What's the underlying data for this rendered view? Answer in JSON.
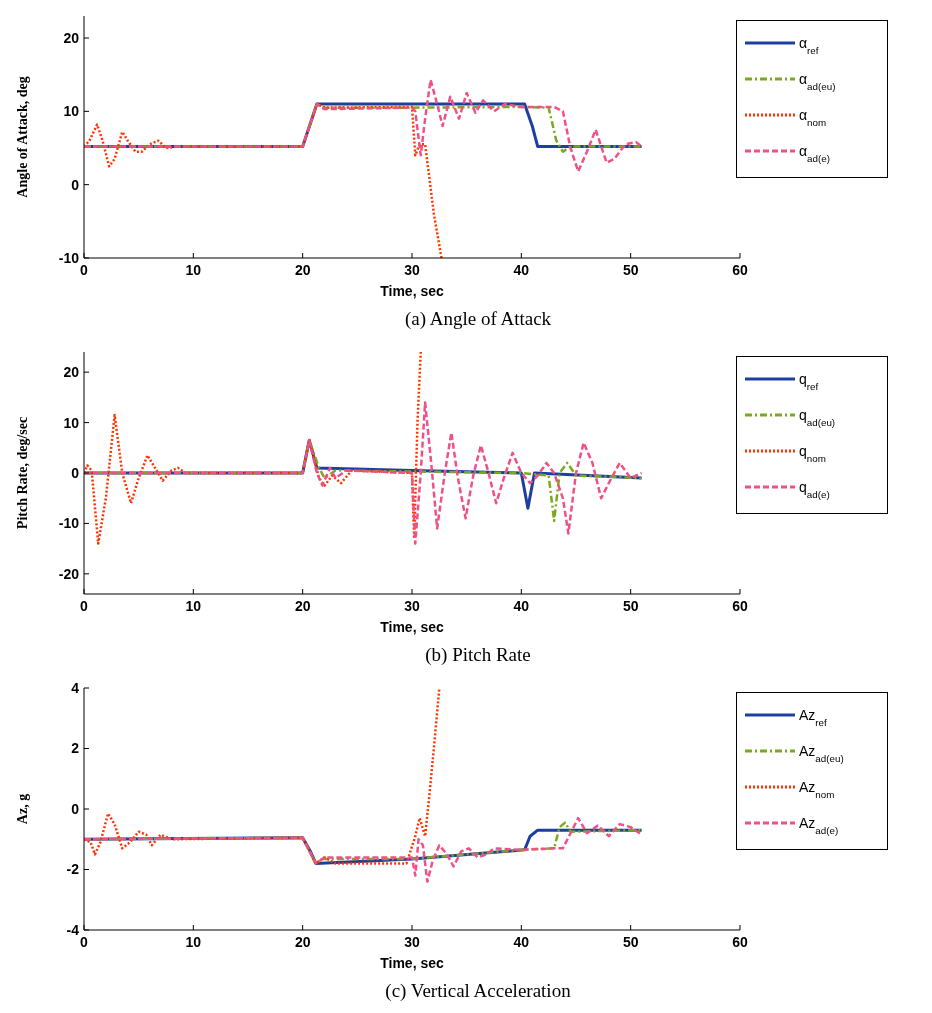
{
  "chart_data": [
    {
      "type": "line",
      "title": "(a) Angle of Attack",
      "xlabel": "Time, sec",
      "ylabel": "Angle of Attack, deg",
      "xlim": [
        0,
        60
      ],
      "xticks": [
        0,
        10,
        20,
        30,
        40,
        50,
        60
      ],
      "ylim": [
        -10,
        23
      ],
      "yticks": [
        -10,
        0,
        10,
        20
      ],
      "legend": "top right",
      "series": [
        {
          "name": "α$_{ref}$",
          "color": "#1f3fa0",
          "line_style": "solid",
          "x": [
            0,
            20,
            21.3,
            40.3,
            41,
            41.5,
            51
          ],
          "values": [
            5.2,
            5.2,
            11,
            11,
            8,
            5.2,
            5.2
          ]
        },
        {
          "name": "α$_{ad(eu)}$",
          "color": "#7aa81e",
          "line_style": "dashdot",
          "x": [
            0,
            20,
            21.3,
            22,
            30,
            40,
            42.5,
            43.2,
            43.8,
            44.5,
            51
          ],
          "values": [
            5.2,
            5.2,
            11,
            10.5,
            10.5,
            10.6,
            10.5,
            6,
            4.5,
            5.2,
            5.2
          ]
        },
        {
          "name": "α$_{nom}$",
          "color": "#ff3300",
          "line_style": "dotted",
          "x": [
            0,
            0.5,
            1.2,
            1.7,
            2.3,
            2.8,
            3.5,
            4,
            4.7,
            5.3,
            6,
            6.8,
            7.5,
            8.5,
            20,
            21.3,
            22,
            30,
            30.3,
            30.7,
            31.2,
            31.5,
            32,
            32.7
          ],
          "values": [
            5.2,
            6,
            8.2,
            6,
            2.5,
            3.5,
            7.2,
            6,
            4.5,
            4.5,
            5.5,
            6,
            5,
            5.2,
            5.2,
            11,
            10.5,
            10.6,
            4,
            5.5,
            5.5,
            2,
            -4,
            -10
          ]
        },
        {
          "name": "α$_{ad(e)}$",
          "color": "#f0508a",
          "line_style": "dashed",
          "x": [
            0,
            20,
            21.3,
            22,
            30,
            30.3,
            30.8,
            31.2,
            31.7,
            32.3,
            32.8,
            33.5,
            34.3,
            35,
            35.8,
            36.5,
            37.5,
            38.5,
            40,
            43,
            43.8,
            44.5,
            45.2,
            46,
            46.8,
            47.8,
            48.5,
            49.5,
            50.5,
            51
          ],
          "values": [
            5.2,
            5.2,
            11,
            10.3,
            10.5,
            10,
            4,
            9,
            14.3,
            11,
            8,
            12,
            9,
            12.5,
            9.8,
            11.5,
            10,
            11,
            10.6,
            10.6,
            10,
            5,
            1.8,
            4.5,
            7.5,
            3,
            3.5,
            5.5,
            5.8,
            5.2
          ]
        }
      ]
    },
    {
      "type": "line",
      "title": "(b) Pitch Rate",
      "xlabel": "Time, sec",
      "ylabel": "Pitch Rate, deg/sec",
      "xlim": [
        0,
        60
      ],
      "xticks": [
        0,
        10,
        20,
        30,
        40,
        50,
        60
      ],
      "ylim": [
        -24,
        24
      ],
      "yticks": [
        -20,
        -10,
        0,
        10,
        20
      ],
      "legend": "top right",
      "series": [
        {
          "name": "q$_{ref}$",
          "color": "#1f3fa0",
          "line_style": "solid",
          "x": [
            0,
            20,
            20.6,
            21.3,
            30,
            40,
            40.6,
            41.2,
            51
          ],
          "values": [
            0,
            0,
            6.5,
            1,
            0.5,
            0,
            -7,
            0,
            -1
          ]
        },
        {
          "name": "q$_{ad(eu)}$",
          "color": "#7aa81e",
          "line_style": "dashdot",
          "x": [
            0,
            20,
            20.6,
            21.5,
            22,
            23,
            40,
            42.5,
            43,
            43.5,
            44.2,
            45,
            51
          ],
          "values": [
            0,
            0,
            6.5,
            1,
            -1,
            0.5,
            0,
            -0.5,
            -9.5,
            0,
            2,
            -0.5,
            -1
          ]
        },
        {
          "name": "q$_{nom}$",
          "color": "#ff3300",
          "line_style": "dotted",
          "x": [
            0,
            0.3,
            0.7,
            1.3,
            2,
            2.8,
            3.5,
            4.3,
            5,
            5.8,
            6.5,
            7.2,
            8,
            8.6,
            9.3,
            20,
            20.6,
            21.5,
            22,
            22.7,
            23.5,
            24.5,
            30,
            30.2,
            30.5,
            30.8
          ],
          "values": [
            0,
            1.5,
            0.5,
            -14,
            -5,
            11.5,
            0,
            -6,
            -1,
            3.5,
            1,
            -1.5,
            0.5,
            1,
            0,
            0,
            6.5,
            -1,
            -2.5,
            -0.5,
            -2,
            0.5,
            0,
            -13,
            10,
            24
          ]
        },
        {
          "name": "q$_{ad(e)}$",
          "color": "#f0508a",
          "line_style": "dashed",
          "x": [
            0,
            20,
            20.6,
            21.3,
            21.8,
            22.5,
            23,
            24,
            30,
            30.3,
            30.8,
            31.2,
            31.8,
            32.3,
            33,
            33.6,
            34.2,
            34.9,
            35.6,
            36.3,
            37,
            37.7,
            38.4,
            39.2,
            40,
            40.8,
            41.5,
            42.3,
            43,
            43.8,
            44.3,
            45,
            45.7,
            46.5,
            47.3,
            48,
            49,
            50,
            51
          ],
          "values": [
            0,
            0,
            6.5,
            0,
            -2.5,
            1,
            -1,
            0.5,
            0,
            -14,
            0,
            14,
            1,
            -11,
            0,
            8,
            -1,
            -9,
            -0.5,
            5.5,
            0,
            -6,
            -1,
            4,
            0,
            -2,
            -0.5,
            2,
            0,
            -5,
            -12,
            0,
            6,
            2,
            -5,
            -2,
            2,
            -1,
            0
          ]
        }
      ]
    },
    {
      "type": "line",
      "title": "(c) Vertical Acceleration",
      "xlabel": "Time, sec",
      "ylabel": "Az, g",
      "xlim": [
        0,
        60
      ],
      "xticks": [
        0,
        10,
        20,
        30,
        40,
        50,
        60
      ],
      "ylim": [
        -4,
        4
      ],
      "yticks": [
        -4,
        -2,
        0,
        2,
        4
      ],
      "legend": "top right",
      "series": [
        {
          "name": "Az$_{ref}$",
          "color": "#1f3fa0",
          "line_style": "solid",
          "x": [
            0,
            20,
            20.7,
            21.2,
            30,
            40.3,
            40.8,
            41.5,
            51
          ],
          "values": [
            -1,
            -0.95,
            -1.4,
            -1.8,
            -1.65,
            -1.35,
            -0.9,
            -0.7,
            -0.7
          ]
        },
        {
          "name": "Az$_{ad(eu)}$",
          "color": "#7aa81e",
          "line_style": "dashdot",
          "x": [
            0,
            20,
            21.2,
            21.8,
            30,
            40,
            43,
            43.5,
            44,
            44.5,
            51
          ],
          "values": [
            -1,
            -0.95,
            -1.8,
            -1.65,
            -1.65,
            -1.35,
            -1.3,
            -0.6,
            -0.45,
            -0.75,
            -0.7
          ]
        },
        {
          "name": "Az$_{nom}$",
          "color": "#ff3300",
          "line_style": "dotted",
          "x": [
            0,
            0.6,
            1,
            1.5,
            2.2,
            2.8,
            3.5,
            4.2,
            5,
            5.7,
            6.2,
            7,
            8,
            20,
            21.2,
            22,
            23,
            29.5,
            30.3,
            30.7,
            31.2,
            31.6,
            32,
            32.5
          ],
          "values": [
            -1,
            -1.1,
            -1.5,
            -1.1,
            -0.15,
            -0.5,
            -1.3,
            -1.1,
            -0.75,
            -0.85,
            -1.2,
            -0.85,
            -1,
            -0.95,
            -1.8,
            -1.6,
            -1.8,
            -1.8,
            -0.9,
            -0.3,
            -0.9,
            0.5,
            2,
            4
          ]
        },
        {
          "name": "Az$_{ad(e)}$",
          "color": "#f0508a",
          "line_style": "dashed",
          "x": [
            0,
            20,
            21.2,
            22,
            30,
            30.3,
            30.6,
            31,
            31.4,
            31.9,
            32.5,
            33.2,
            33.8,
            34.5,
            35.2,
            36,
            36.8,
            37.5,
            40,
            43,
            43.8,
            44.5,
            45.2,
            46,
            47,
            48,
            49,
            50,
            51
          ],
          "values": [
            -1,
            -0.95,
            -1.8,
            -1.6,
            -1.6,
            -2.2,
            -1,
            -1.2,
            -2.4,
            -1.7,
            -1.2,
            -1.5,
            -1.9,
            -1.4,
            -1.3,
            -1.6,
            -1.5,
            -1.3,
            -1.35,
            -1.3,
            -1.3,
            -0.8,
            -0.3,
            -0.8,
            -0.55,
            -0.9,
            -0.5,
            -0.6,
            -0.85
          ]
        }
      ]
    }
  ]
}
